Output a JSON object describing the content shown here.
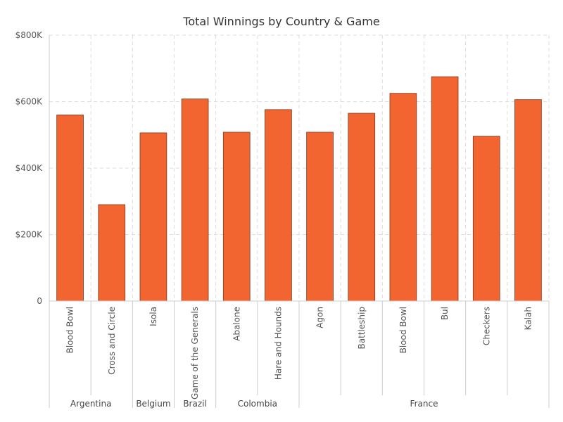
{
  "chart_data": {
    "type": "bar",
    "title": "Total Winnings by Country & Game",
    "xlabel": "",
    "ylabel": "",
    "ylim": [
      0,
      800000
    ],
    "y_ticks": [
      {
        "value": 0,
        "label": "0"
      },
      {
        "value": 200000,
        "label": "$200K"
      },
      {
        "value": 400000,
        "label": "$400K"
      },
      {
        "value": 600000,
        "label": "$600K"
      },
      {
        "value": 800000,
        "label": "$800K"
      }
    ],
    "grid": true,
    "legend": "none",
    "colors": {
      "bar": "#f26430",
      "bar_stroke": "#7a3a1e",
      "grid": "#dddddd",
      "axis": "#cccccc"
    },
    "categories": [
      "Blood Bowl",
      "Cross and Circle",
      "Isola",
      "Game of the Generals",
      "Abalone",
      "Hare and Hounds",
      "Agon",
      "Battleship",
      "Blood Bowl",
      "Bul",
      "Checkers",
      "Kalah"
    ],
    "groups": [
      {
        "label": "Argentina",
        "count": 2
      },
      {
        "label": "Belgium",
        "count": 1
      },
      {
        "label": "Brazil",
        "count": 1
      },
      {
        "label": "Colombia",
        "count": 2
      },
      {
        "label": "France",
        "count": 6
      }
    ],
    "values": [
      560000,
      290000,
      506000,
      608000,
      508000,
      576000,
      508000,
      565000,
      625000,
      675000,
      496000,
      606000
    ]
  }
}
